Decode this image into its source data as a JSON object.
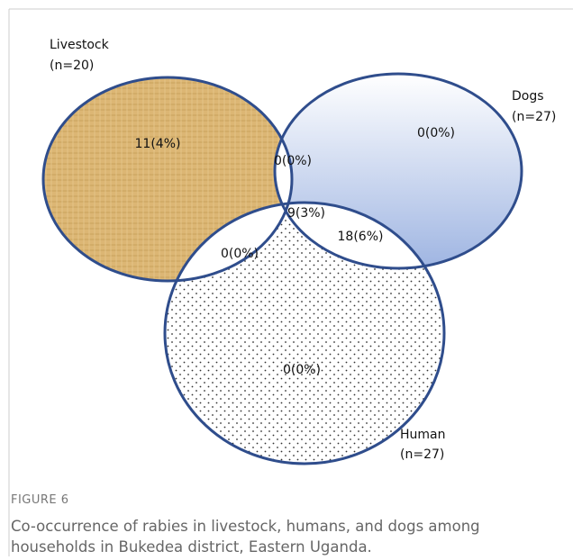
{
  "sets": [
    {
      "name": "Livestock",
      "n": "(n=20)"
    },
    {
      "name": "Dogs",
      "n": "(n=27)"
    },
    {
      "name": "Human",
      "n": "(n=27)"
    }
  ],
  "regions": {
    "livestock_only": "11(4%)",
    "dogs_only": "0(0%)",
    "livestock_dogs": "0(0%)",
    "all_three": "9(3%)",
    "dogs_human": "18(6%)",
    "livestock_human": "0(0%)",
    "human_only": "0(0%)"
  },
  "caption": {
    "label": "FIGURE 6",
    "lines": [
      "Co-occurrence of rabies in livestock, humans, and dogs among",
      "households in Bukedea district, Eastern Uganda."
    ]
  }
}
